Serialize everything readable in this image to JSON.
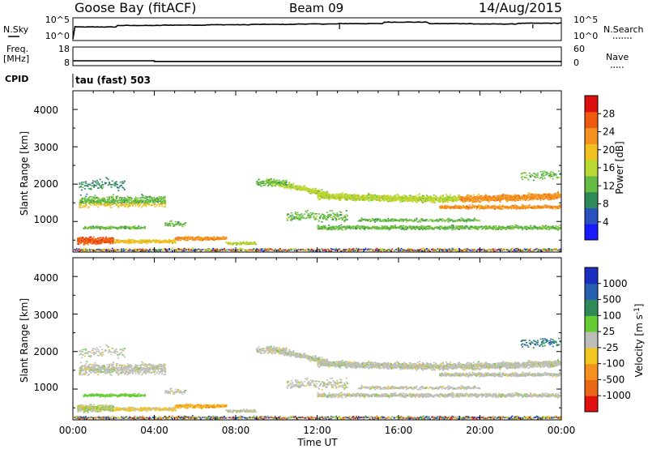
{
  "header": {
    "station": "Goose Bay (fitACF)",
    "beam": "Beam 09",
    "date": "14/Aug/2015"
  },
  "side_labels": {
    "nsky": "N.Sky",
    "nsearch": "N.Search",
    "freq_line1": "Freq.",
    "freq_line2": "[MHz]",
    "nave": "Nave",
    "cpid": "CPID",
    "cpid_value": "tau (fast) 503"
  },
  "noise_panel": {
    "left_ticks": [
      "10^5",
      "10^0"
    ],
    "right_ticks": [
      "10^5",
      "10^0"
    ]
  },
  "freq_panel": {
    "left_ticks": [
      "18",
      "8"
    ],
    "right_ticks": [
      "60",
      "0"
    ]
  },
  "x_axis": {
    "ticks": [
      "00:00",
      "04:00",
      "08:00",
      "12:00",
      "16:00",
      "20:00",
      "00:00"
    ],
    "label": "Time UT"
  },
  "range_axis": {
    "label": "Slant Range [km]",
    "ticks": [
      "1000",
      "2000",
      "3000",
      "4000"
    ]
  },
  "colorbars": {
    "power": {
      "label": "Power [dB]",
      "ticks": [
        "4",
        "8",
        "12",
        "16",
        "20",
        "24",
        "28"
      ],
      "colors": [
        "#1a1aff",
        "#2a52be",
        "#2e8b57",
        "#66bb44",
        "#b8d832",
        "#f0c020",
        "#f39020",
        "#ee5a10",
        "#dd1010"
      ]
    },
    "velocity": {
      "label": "Velocity [m s^-1]",
      "ticks": [
        "1000",
        "500",
        "100",
        "25",
        "-25",
        "-100",
        "-500",
        "-1000"
      ],
      "colors": [
        "#1a2fbf",
        "#2860b0",
        "#2e8b57",
        "#66cc33",
        "#bebeb8",
        "#f2c820",
        "#f59020",
        "#e86818",
        "#e01010"
      ]
    }
  },
  "chart_data": [
    {
      "type": "line",
      "title": "Goose Bay (fitACF)",
      "x_range": [
        "00:00",
        "00:00"
      ],
      "series": [
        {
          "name": "N.Sky",
          "values": [
            3.2,
            3.6,
            3.7,
            3.8,
            3.9,
            4.0,
            4.1,
            4.5,
            4.1,
            4.0,
            4.2,
            4.4
          ]
        }
      ]
    },
    {
      "type": "line",
      "x_range": [
        "00:00",
        "00:00"
      ],
      "ylim": [
        8,
        18
      ],
      "series": [
        {
          "name": "Freq.",
          "x": [
            "00:00",
            "04:00",
            "04:00",
            "00:00"
          ],
          "values": [
            10.2,
            10.2,
            9.8,
            9.8
          ]
        }
      ]
    },
    {
      "type": "heatmap",
      "xlabel": "Time UT",
      "ylabel": "Slant Range [km]",
      "x_ticks": [
        "00:00",
        "04:00",
        "08:00",
        "12:00",
        "16:00",
        "20:00",
        "00:00"
      ],
      "y_ticks": [
        "1000",
        "2000",
        "3000",
        "4000"
      ],
      "colorbar": "Power [dB]",
      "colorbar_ticks": [
        "4",
        "8",
        "12",
        "16",
        "20",
        "24",
        "28"
      ]
    },
    {
      "type": "heatmap",
      "xlabel": "Time UT",
      "ylabel": "Slant Range [km]",
      "x_ticks": [
        "00:00",
        "04:00",
        "08:00",
        "12:00",
        "16:00",
        "20:00",
        "00:00"
      ],
      "y_ticks": [
        "1000",
        "2000",
        "3000",
        "4000"
      ],
      "colorbar": "Velocity [m s^-1]",
      "colorbar_ticks": [
        "1000",
        "500",
        "100",
        "25",
        "-25",
        "-100",
        "-500",
        "-1000"
      ]
    }
  ]
}
